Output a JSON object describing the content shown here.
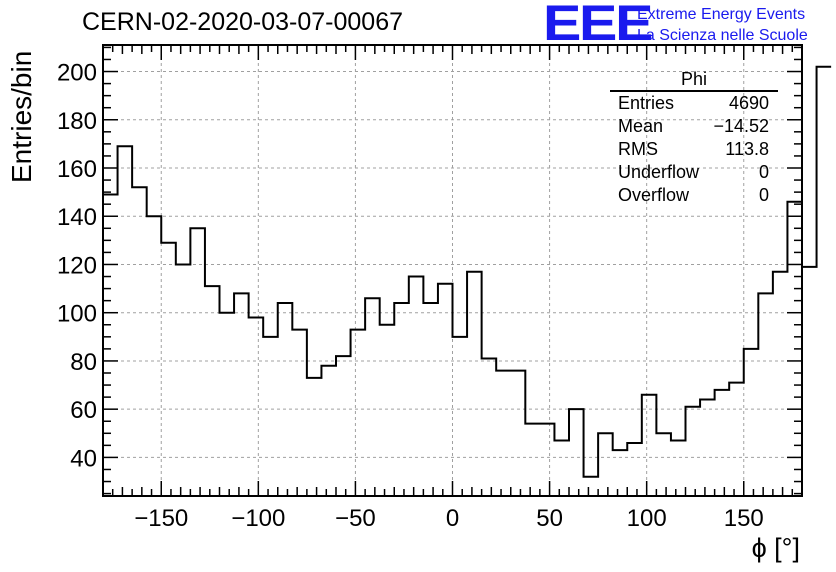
{
  "chart_data": {
    "type": "histogram",
    "title": "CERN-02-2020-03-07-00067",
    "xlabel": "ϕ [°]",
    "ylabel": "Entries/bin",
    "xlim": [
      -180,
      180
    ],
    "ylim": [
      24,
      211
    ],
    "bin_width": 7.5,
    "x_ticks": [
      -150,
      -100,
      -50,
      0,
      50,
      100,
      150
    ],
    "x_tick_labels": [
      "−150",
      "−100",
      "−50",
      "0",
      "50",
      "100",
      "150"
    ],
    "y_ticks": [
      40,
      60,
      80,
      100,
      120,
      140,
      160,
      180,
      200
    ],
    "y_tick_labels": [
      "40",
      "60",
      "80",
      "100",
      "120",
      "140",
      "160",
      "180",
      "200"
    ],
    "grid": true,
    "bin_edges_start": -180,
    "values": [
      149,
      169,
      152,
      140,
      129,
      120,
      135,
      111,
      100,
      108,
      98,
      90,
      104,
      93,
      73,
      78,
      82,
      93,
      106,
      95,
      104,
      115,
      104,
      112,
      90,
      117,
      81,
      76,
      76,
      54,
      54,
      47,
      60,
      32,
      50,
      43,
      46,
      66,
      50,
      47,
      61,
      64,
      68,
      71,
      85,
      108,
      117,
      146,
      119,
      202
    ]
  },
  "stats": {
    "title": "Phi",
    "rows": [
      {
        "label": "Entries",
        "value": "4690"
      },
      {
        "label": "Mean",
        "value": "−14.52"
      },
      {
        "label": "RMS",
        "value": "113.8"
      },
      {
        "label": "Underflow",
        "value": "0"
      },
      {
        "label": "Overflow",
        "value": "0"
      }
    ]
  },
  "branding": {
    "logo": "EEE",
    "org_line1": "Extreme Energy Events",
    "org_line2": "La Scienza nelle Scuole",
    "color": "#1a1aee"
  }
}
